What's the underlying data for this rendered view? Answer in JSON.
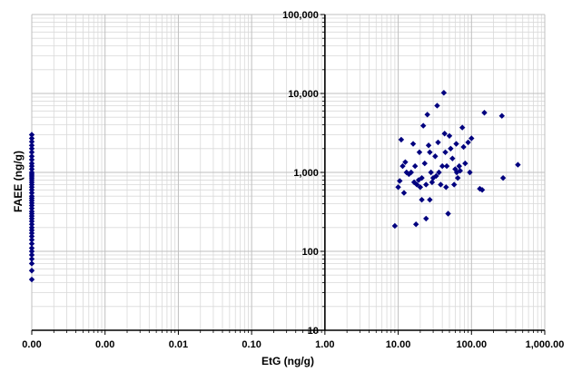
{
  "chart_data": {
    "type": "scatter",
    "xlabel": "EtG (ng/g)",
    "ylabel": "FAEE (ng/g)",
    "x_scale": "log",
    "y_scale": "log",
    "xlim": [
      0.0001,
      1000
    ],
    "ylim": [
      10,
      100000
    ],
    "x_tick_labels": [
      "0.00",
      "0.00",
      "0.01",
      "0.10",
      "1.00",
      "10.00",
      "100.00",
      "1,000.00"
    ],
    "y_tick_labels": [
      "10",
      "100",
      "1,000",
      "10,000",
      "100,000"
    ],
    "grid": true,
    "marker_color": "#00007f",
    "series": [
      {
        "points": [
          [
            0.0001,
            3000
          ],
          [
            0.0001,
            2700
          ],
          [
            0.0001,
            2450
          ],
          [
            0.0001,
            2200
          ],
          [
            0.0001,
            2000
          ],
          [
            0.0001,
            1800
          ],
          [
            0.0001,
            1600
          ],
          [
            0.0001,
            1450
          ],
          [
            0.0001,
            1300
          ],
          [
            0.0001,
            1200
          ],
          [
            0.0001,
            1100
          ],
          [
            0.0001,
            1000
          ],
          [
            0.0001,
            950
          ],
          [
            0.0001,
            900
          ],
          [
            0.0001,
            850
          ],
          [
            0.0001,
            800
          ],
          [
            0.0001,
            750
          ],
          [
            0.0001,
            700
          ],
          [
            0.0001,
            650
          ],
          [
            0.0001,
            600
          ],
          [
            0.0001,
            550
          ],
          [
            0.0001,
            500
          ],
          [
            0.0001,
            470
          ],
          [
            0.0001,
            440
          ],
          [
            0.0001,
            410
          ],
          [
            0.0001,
            380
          ],
          [
            0.0001,
            350
          ],
          [
            0.0001,
            320
          ],
          [
            0.0001,
            300
          ],
          [
            0.0001,
            280
          ],
          [
            0.0001,
            260
          ],
          [
            0.0001,
            240
          ],
          [
            0.0001,
            220
          ],
          [
            0.0001,
            200
          ],
          [
            0.0001,
            185
          ],
          [
            0.0001,
            170
          ],
          [
            0.0001,
            155
          ],
          [
            0.0001,
            140
          ],
          [
            0.0001,
            125
          ],
          [
            0.0001,
            110
          ],
          [
            0.0001,
            100
          ],
          [
            0.0001,
            90
          ],
          [
            0.0001,
            80
          ],
          [
            0.0001,
            70
          ],
          [
            0.0001,
            57
          ],
          [
            0.0001,
            44
          ],
          [
            9,
            210
          ],
          [
            10,
            650
          ],
          [
            10.5,
            780
          ],
          [
            11,
            2600
          ],
          [
            11.5,
            1200
          ],
          [
            12,
            550
          ],
          [
            12.5,
            1350
          ],
          [
            13,
            1000
          ],
          [
            14,
            950
          ],
          [
            15,
            1000
          ],
          [
            16,
            2300
          ],
          [
            16.5,
            750
          ],
          [
            17,
            1200
          ],
          [
            17.5,
            220
          ],
          [
            18,
            700
          ],
          [
            19,
            800
          ],
          [
            19.5,
            1800
          ],
          [
            20,
            650
          ],
          [
            21,
            850
          ],
          [
            21,
            450
          ],
          [
            22,
            3900
          ],
          [
            23,
            1300
          ],
          [
            24,
            700
          ],
          [
            24,
            260
          ],
          [
            25,
            5400
          ],
          [
            26,
            2200
          ],
          [
            27,
            1800
          ],
          [
            27,
            450
          ],
          [
            28,
            1000
          ],
          [
            29,
            750
          ],
          [
            30,
            850
          ],
          [
            32,
            1600
          ],
          [
            33,
            900
          ],
          [
            34,
            7000
          ],
          [
            35,
            2400
          ],
          [
            36,
            1000
          ],
          [
            38,
            700
          ],
          [
            40,
            1200
          ],
          [
            42,
            10200
          ],
          [
            43,
            3100
          ],
          [
            44,
            1800
          ],
          [
            45,
            650
          ],
          [
            46,
            1200
          ],
          [
            48,
            300
          ],
          [
            50,
            2900
          ],
          [
            52,
            2000
          ],
          [
            55,
            1500
          ],
          [
            58,
            700
          ],
          [
            60,
            1100
          ],
          [
            62,
            2300
          ],
          [
            63,
            1000
          ],
          [
            65,
            850
          ],
          [
            68,
            1200
          ],
          [
            70,
            1050
          ],
          [
            75,
            3700
          ],
          [
            78,
            2100
          ],
          [
            82,
            1300
          ],
          [
            90,
            2400
          ],
          [
            95,
            1000
          ],
          [
            100,
            2700
          ],
          [
            130,
            620
          ],
          [
            140,
            600
          ],
          [
            150,
            5700
          ],
          [
            260,
            5200
          ],
          [
            270,
            850
          ],
          [
            430,
            1250
          ]
        ]
      }
    ]
  }
}
